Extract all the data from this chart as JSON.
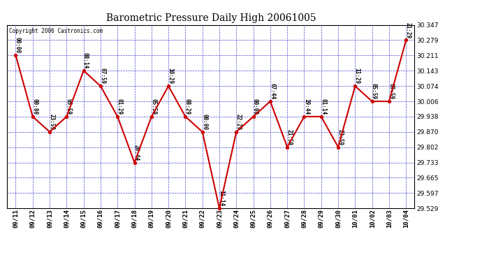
{
  "title": "Barometric Pressure Daily High 20061005",
  "copyright": "Copyright 2006 Castronics.com",
  "dates": [
    "09/11",
    "09/12",
    "09/13",
    "09/14",
    "09/15",
    "09/16",
    "09/17",
    "09/18",
    "09/19",
    "09/20",
    "09/21",
    "09/22",
    "09/23",
    "09/24",
    "09/25",
    "09/26",
    "09/27",
    "09/28",
    "09/29",
    "09/30",
    "10/01",
    "10/02",
    "10/03",
    "10/04"
  ],
  "values": [
    30.211,
    29.938,
    29.87,
    29.938,
    30.143,
    30.074,
    29.938,
    29.733,
    29.938,
    30.074,
    29.938,
    29.87,
    29.529,
    29.87,
    29.938,
    30.006,
    29.802,
    29.938,
    29.938,
    29.802,
    30.074,
    30.006,
    30.006,
    30.279
  ],
  "time_labels": [
    "00:00",
    "00:00",
    "23:59",
    "05:59",
    "08:14",
    "07:59",
    "01:29",
    "20:44",
    "05:59",
    "10:29",
    "08:29",
    "00:00",
    "11:14",
    "22:29",
    "00:00",
    "07:44",
    "21:59",
    "19:44",
    "01:14",
    "23:59",
    "11:29",
    "05:59",
    "09:59",
    "21:29"
  ],
  "ylim_low": 29.529,
  "ylim_high": 30.347,
  "yticks": [
    29.529,
    29.597,
    29.665,
    29.733,
    29.802,
    29.87,
    29.938,
    30.006,
    30.074,
    30.143,
    30.211,
    30.279,
    30.347
  ],
  "line_color": "#cc0000",
  "marker_color": "#cc0000",
  "bg_color": "#ffffff",
  "grid_color": "#3333cc",
  "title_fontsize": 10,
  "label_fontsize": 5.5,
  "tick_fontsize": 6.5
}
